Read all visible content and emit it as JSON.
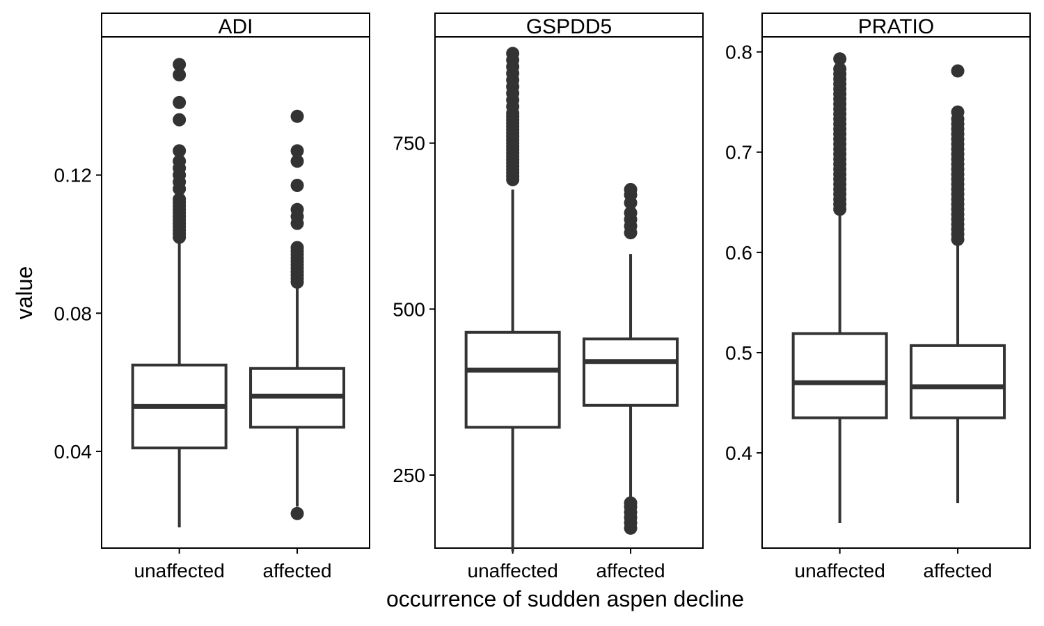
{
  "chart_data": {
    "type": "boxplot",
    "xlabel": "occurrence of sudden aspen decline",
    "ylabel": "value",
    "categories": [
      "unaffected",
      "affected"
    ],
    "panels": [
      {
        "name": "ADI",
        "ylim": [
          0.012,
          0.16
        ],
        "yticks": [
          0.04,
          0.08,
          0.12
        ],
        "ytick_labels": [
          "0.04",
          "0.08",
          "0.12"
        ],
        "boxes": [
          {
            "category": "unaffected",
            "whisker_low": 0.018,
            "q1": 0.041,
            "median": 0.053,
            "q3": 0.065,
            "whisker_high": 0.101,
            "outliers": [
              0.102,
              0.103,
              0.104,
              0.105,
              0.106,
              0.107,
              0.108,
              0.109,
              0.11,
              0.111,
              0.112,
              0.113,
              0.116,
              0.118,
              0.12,
              0.122,
              0.124,
              0.127,
              0.136,
              0.141,
              0.149,
              0.152
            ]
          },
          {
            "category": "affected",
            "whisker_low": 0.024,
            "q1": 0.047,
            "median": 0.056,
            "q3": 0.064,
            "whisker_high": 0.088,
            "outliers": [
              0.022,
              0.089,
              0.09,
              0.091,
              0.092,
              0.093,
              0.094,
              0.095,
              0.096,
              0.097,
              0.098,
              0.099,
              0.106,
              0.108,
              0.11,
              0.117,
              0.124,
              0.127,
              0.137
            ]
          }
        ]
      },
      {
        "name": "GSPDD5",
        "ylim": [
          140,
          910
        ],
        "yticks": [
          250,
          500,
          750
        ],
        "ytick_labels": [
          "250",
          "500",
          "750"
        ],
        "boxes": [
          {
            "category": "unaffected",
            "whisker_low": 135,
            "q1": 322,
            "median": 408,
            "q3": 465,
            "whisker_high": 680,
            "outliers": [
              695,
              700,
              705,
              710,
              715,
              720,
              725,
              730,
              735,
              740,
              745,
              750,
              755,
              760,
              765,
              770,
              775,
              780,
              785,
              790,
              795,
              805,
              815,
              825,
              835,
              845,
              855,
              865,
              875,
              885
            ]
          },
          {
            "category": "affected",
            "whisker_low": 215,
            "q1": 355,
            "median": 421,
            "q3": 455,
            "whisker_high": 583,
            "outliers": [
              170,
              178,
              186,
              194,
              202,
              208,
              615,
              625,
              635,
              645,
              660,
              672,
              680
            ]
          }
        ]
      },
      {
        "name": "PRATIO",
        "ylim": [
          0.305,
          0.815
        ],
        "yticks": [
          0.4,
          0.5,
          0.6,
          0.7,
          0.8
        ],
        "ytick_labels": [
          "0.4",
          "0.5",
          "0.6",
          "0.7",
          "0.8"
        ],
        "boxes": [
          {
            "category": "unaffected",
            "whisker_low": 0.33,
            "q1": 0.435,
            "median": 0.47,
            "q3": 0.519,
            "whisker_high": 0.64,
            "outliers": [
              0.643,
              0.648,
              0.653,
              0.658,
              0.663,
              0.668,
              0.673,
              0.678,
              0.683,
              0.688,
              0.693,
              0.698,
              0.703,
              0.708,
              0.713,
              0.718,
              0.723,
              0.728,
              0.733,
              0.738,
              0.743,
              0.748,
              0.753,
              0.758,
              0.763,
              0.768,
              0.773,
              0.778,
              0.783,
              0.793
            ]
          },
          {
            "category": "affected",
            "whisker_low": 0.35,
            "q1": 0.435,
            "median": 0.466,
            "q3": 0.507,
            "whisker_high": 0.61,
            "outliers": [
              0.613,
              0.618,
              0.623,
              0.628,
              0.633,
              0.638,
              0.643,
              0.648,
              0.653,
              0.658,
              0.663,
              0.668,
              0.673,
              0.678,
              0.683,
              0.688,
              0.693,
              0.698,
              0.703,
              0.708,
              0.713,
              0.718,
              0.723,
              0.728,
              0.733,
              0.74,
              0.781
            ]
          }
        ]
      }
    ],
    "grid": false,
    "legend": "none"
  }
}
